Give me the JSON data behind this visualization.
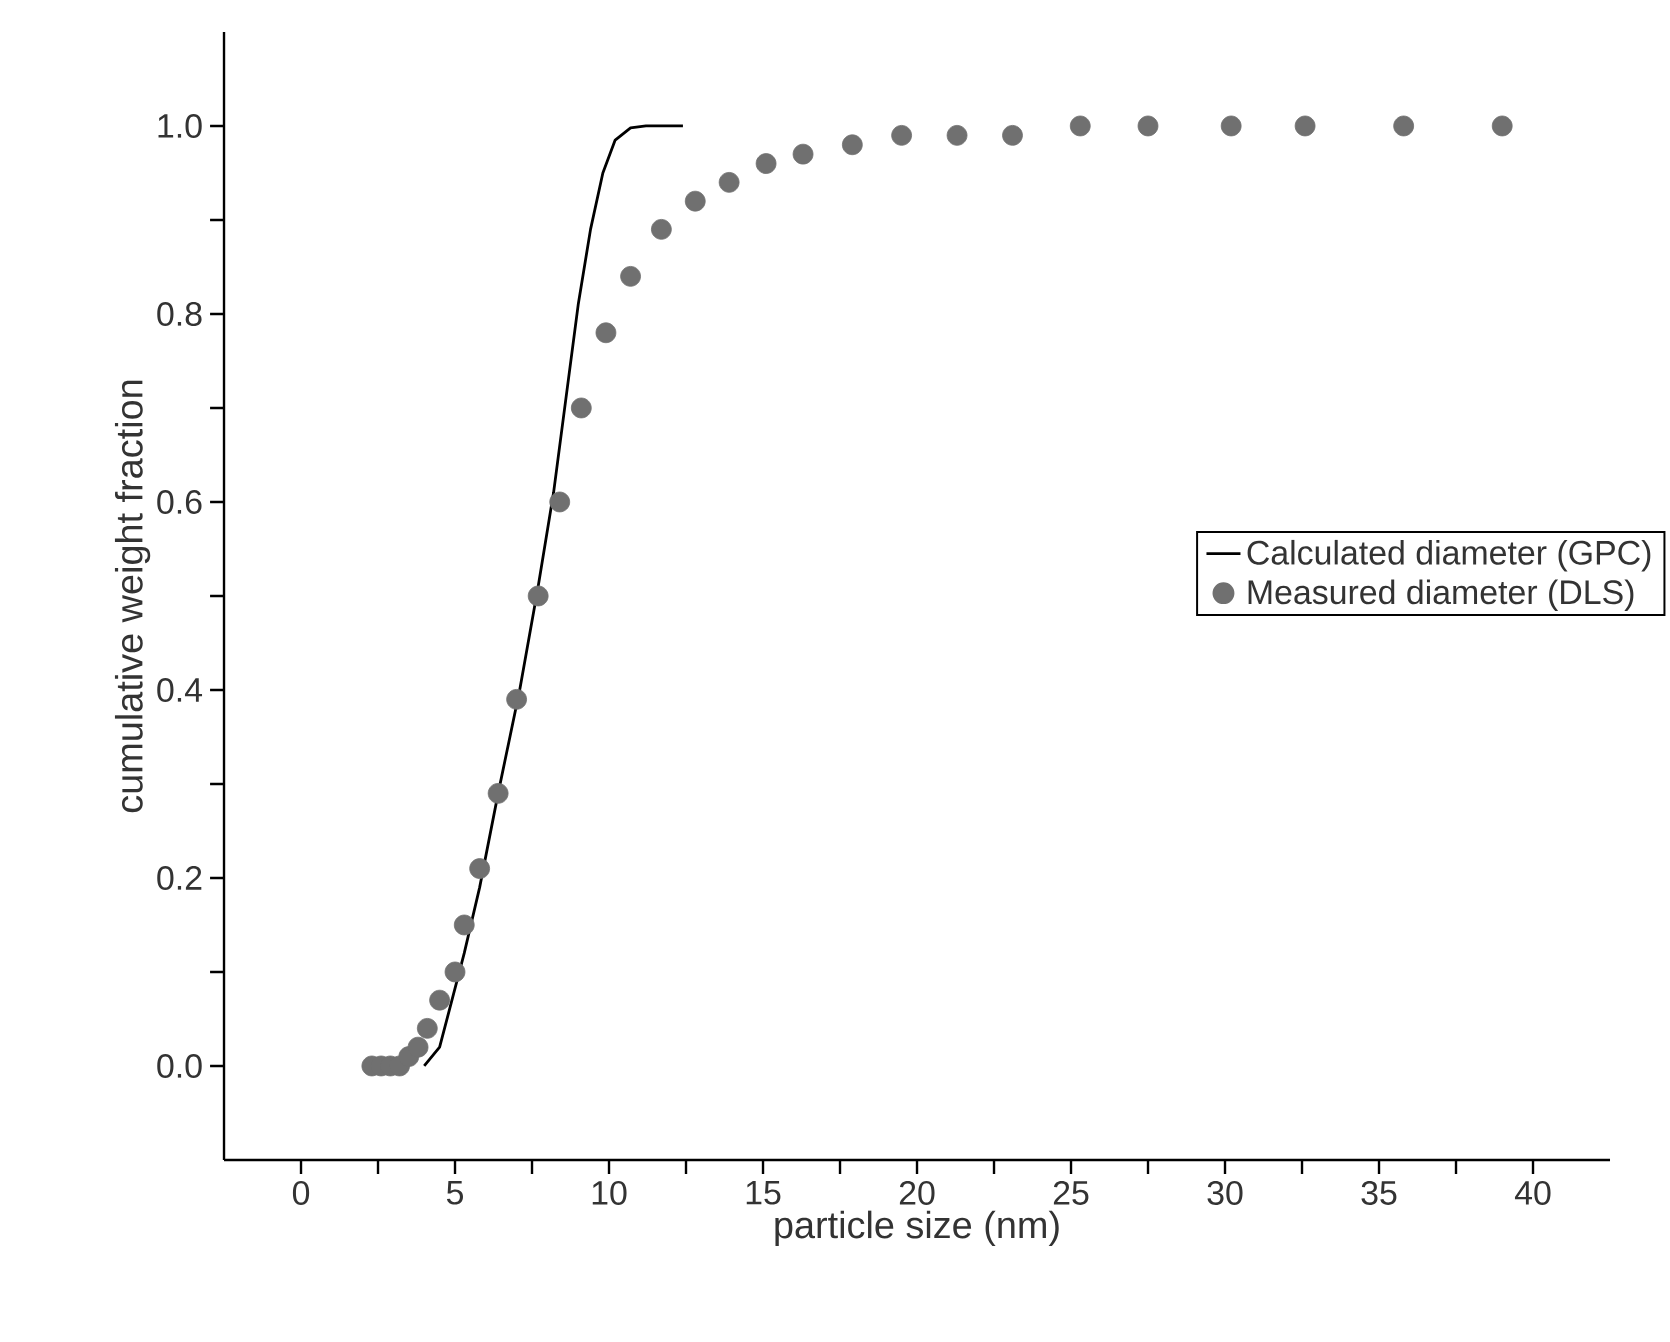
{
  "chart_data": {
    "type": "scatter",
    "xlabel": "particle size (nm)",
    "ylabel": "cumulative weight fraction",
    "xlim": [
      -2.5,
      42.5
    ],
    "ylim": [
      -0.1,
      1.1
    ],
    "xticks": [
      0,
      5,
      10,
      15,
      20,
      25,
      30,
      35,
      40,
      {
        "value": 2.5,
        "label": null
      },
      {
        "value": 7.5,
        "label": null
      },
      {
        "value": 12.5,
        "label": null
      },
      {
        "value": 17.5,
        "label": null
      },
      {
        "value": 22.5,
        "label": null
      },
      {
        "value": 27.5,
        "label": null
      },
      {
        "value": 32.5,
        "label": null
      },
      {
        "value": 37.5,
        "label": null
      }
    ],
    "yticks": [
      {
        "value": 0,
        "label": "0.0"
      },
      0.2,
      0.4,
      0.6,
      0.8,
      {
        "value": 1,
        "label": "1.0"
      },
      {
        "value": 0.1,
        "label": null
      },
      {
        "value": 0.3,
        "label": null
      },
      {
        "value": 0.5,
        "label": null
      },
      {
        "value": 0.7,
        "label": null
      },
      {
        "value": 0.9,
        "label": null
      }
    ],
    "legend": "right",
    "grid": false,
    "series": [
      {
        "name": "Calculated diameter (GPC)",
        "type": "line",
        "color": "#000000",
        "marker": "none",
        "line_style": "solid",
        "x": [
          4.0,
          4.5,
          5.3,
          5.8,
          6.4,
          7.1,
          7.7,
          8.2,
          8.6,
          9.0,
          9.4,
          9.8,
          10.2,
          10.7,
          11.2,
          12.4
        ],
        "values": [
          0.0,
          0.02,
          0.12,
          0.19,
          0.29,
          0.4,
          0.51,
          0.61,
          0.71,
          0.81,
          0.89,
          0.95,
          0.985,
          0.998,
          1.0,
          1.0
        ]
      },
      {
        "name": "Measured diameter (DLS)",
        "color": "#707070",
        "marker": "circle",
        "x": [
          2.3,
          2.6,
          2.9,
          3.2,
          3.5,
          3.8,
          4.1,
          4.5,
          5.0,
          5.3,
          5.8,
          6.4,
          7.0,
          7.7,
          8.4,
          9.1,
          9.9,
          10.7,
          11.7,
          12.8,
          13.9,
          15.1,
          16.3,
          17.9,
          19.5,
          21.3,
          23.1,
          25.3,
          27.5,
          30.2,
          32.6,
          35.8,
          39.0
        ],
        "values": [
          0,
          0,
          0,
          0,
          0.01,
          0.02,
          0.04,
          0.07,
          0.1,
          0.15,
          0.21,
          0.29,
          0.39,
          0.5,
          0.6,
          0.7,
          0.78,
          0.84,
          0.89,
          0.92,
          0.94,
          0.96,
          0.97,
          0.98,
          0.99,
          0.99,
          0.99,
          1.0,
          1.0,
          1.0,
          1.0,
          1.0,
          1.0
        ]
      }
    ]
  }
}
